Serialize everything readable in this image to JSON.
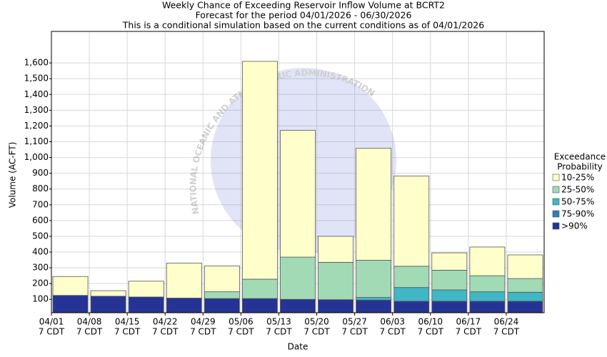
{
  "chart_data": {
    "type": "stacked_bar",
    "title": "Weekly Chance of Exceeding Reservoir Inflow Volume at BCRT2",
    "subtitle": "Forecast for the period 04/01/2026 - 06/30/2026",
    "note": "This is a conditional simulation based on the current conditions as of 04/01/2026",
    "watermark": "NATIONAL OCEANIC AND ATMOSPHERIC ADMINISTRATION",
    "x_label": "Date",
    "y_label": "Volume (AC-FT)",
    "legend_title": [
      "Exceedance",
      "Probability"
    ],
    "categories": [
      "04/01",
      "04/08",
      "04/15",
      "04/22",
      "04/29",
      "05/06",
      "05/13",
      "05/20",
      "05/27",
      "06/03",
      "06/10",
      "06/17",
      "06/24"
    ],
    "category_times": [
      "7 CDT",
      "7 CDT",
      "7 CDT",
      "7 CDT",
      "7 CDT",
      "7 CDT",
      "7 CDT",
      "7 CDT",
      "7 CDT",
      "7 CDT",
      "7 CDT",
      "7 CDT",
      "7 CDT"
    ],
    "series": [
      {
        "name": ">90%",
        "color": "#253494",
        "values": [
          125,
          120,
          115,
          108,
          105,
          105,
          100,
          98,
          95,
          88,
          88,
          88,
          88
        ]
      },
      {
        "name": "75-90%",
        "color": "#2c7fb8",
        "values": [
          0,
          0,
          0,
          0,
          0,
          0,
          0,
          0,
          0,
          0,
          0,
          0,
          0
        ]
      },
      {
        "name": "50-75%",
        "color": "#41b6c4",
        "values": [
          0,
          0,
          0,
          0,
          0,
          0,
          0,
          0,
          17,
          87,
          72,
          60,
          57
        ]
      },
      {
        "name": "25-50%",
        "color": "#a1dab4",
        "values": [
          0,
          0,
          0,
          0,
          43,
          123,
          268,
          237,
          236,
          135,
          125,
          102,
          87
        ]
      },
      {
        "name": "10-25%",
        "color": "#ffffcc",
        "values": [
          120,
          35,
          100,
          222,
          164,
          1382,
          804,
          165,
          710,
          572,
          110,
          182,
          150
        ]
      }
    ],
    "ylim": [
      15,
      1800
    ],
    "yticks": [
      100,
      200,
      300,
      400,
      500,
      600,
      700,
      800,
      900,
      {
        "value": 1000,
        "label": "1,000"
      },
      {
        "value": 1100,
        "label": "1,100"
      },
      {
        "value": 1200,
        "label": "1,200"
      },
      {
        "value": 1300,
        "label": "1,300"
      },
      {
        "value": 1400,
        "label": "1,400"
      },
      {
        "value": 1500,
        "label": "1,500"
      },
      {
        "value": 1600,
        "label": "1,600"
      }
    ],
    "grid": true
  }
}
